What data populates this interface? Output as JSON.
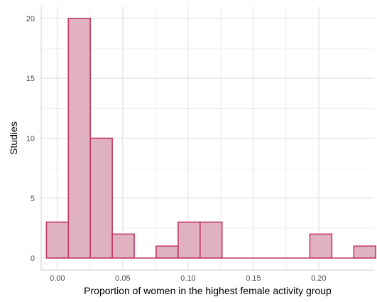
{
  "chart_data": {
    "type": "bar",
    "title": "",
    "xlabel": "Proportion of women in the highest female activity group",
    "ylabel": "Studies",
    "xlim": [
      -0.0124,
      0.2424
    ],
    "ylim": [
      -1.0,
      21.0
    ],
    "grid": true,
    "bin_width": 0.0168,
    "bins": [
      {
        "x0": -0.0084,
        "x1": 0.0084,
        "count": 3
      },
      {
        "x0": 0.0084,
        "x1": 0.0252,
        "count": 20
      },
      {
        "x0": 0.0252,
        "x1": 0.042,
        "count": 10
      },
      {
        "x0": 0.042,
        "x1": 0.0588,
        "count": 2
      },
      {
        "x0": 0.0588,
        "x1": 0.0756,
        "count": 0
      },
      {
        "x0": 0.0756,
        "x1": 0.0924,
        "count": 1
      },
      {
        "x0": 0.0924,
        "x1": 0.1092,
        "count": 3
      },
      {
        "x0": 0.1092,
        "x1": 0.126,
        "count": 3
      },
      {
        "x0": 0.126,
        "x1": 0.1428,
        "count": 0
      },
      {
        "x0": 0.1428,
        "x1": 0.1596,
        "count": 0
      },
      {
        "x0": 0.1596,
        "x1": 0.1764,
        "count": 0
      },
      {
        "x0": 0.1764,
        "x1": 0.1932,
        "count": 0
      },
      {
        "x0": 0.1932,
        "x1": 0.21,
        "count": 2
      },
      {
        "x0": 0.21,
        "x1": 0.2268,
        "count": 0
      },
      {
        "x0": 0.2268,
        "x1": 0.2436,
        "count": 1
      }
    ],
    "x_ticks": [
      0.0,
      0.05,
      0.1,
      0.15,
      0.2
    ],
    "x_tick_labels": [
      "0.00",
      "0.05",
      "0.10",
      "0.15",
      "0.20"
    ],
    "y_ticks": [
      0,
      5,
      10,
      15,
      20
    ],
    "y_tick_labels": [
      "0",
      "5",
      "10",
      "15",
      "20"
    ],
    "colors": {
      "bar_fill": "#e0b1c0",
      "bar_stroke": "#c2385f",
      "grid": "#dcdcdc",
      "axis_frame": "#cccccc"
    }
  }
}
